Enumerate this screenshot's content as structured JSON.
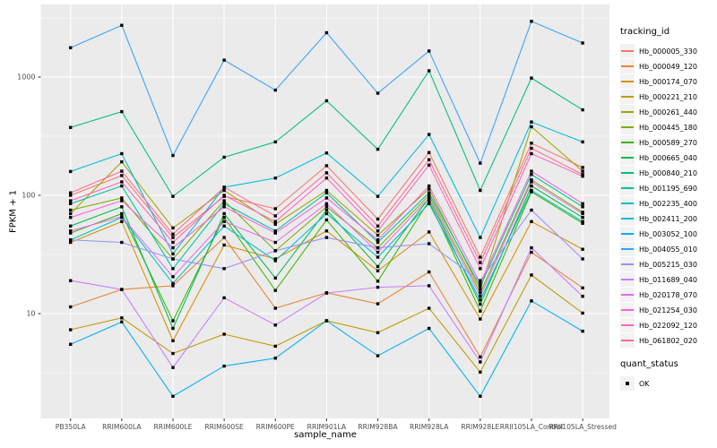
{
  "chart_data": {
    "type": "line",
    "xlabel": "sample_name",
    "ylabel": "FPKM + 1",
    "y_scale": "log10",
    "y_ticks": [
      10,
      100,
      1000
    ],
    "y_minor_ticks": [
      3.162,
      31.62,
      316.2,
      3162
    ],
    "ylim": [
      1.3,
      4100
    ],
    "grid": "major-and-minor-white-on-gray",
    "legend_position": "right",
    "categories": [
      "PB350LA",
      "RRIM600LA",
      "RRIM600LE",
      "RRIM600SE",
      "RRIM600PE",
      "RRIM901LA",
      "RRIM928BA",
      "RRIM928LA",
      "RRIM928LE",
      "RRII105LA_Control",
      "RRII105LA_Stressed"
    ],
    "legend": {
      "title": "tracking_id"
    },
    "legend2": {
      "title": "quant_status",
      "items": [
        {
          "label": "OK",
          "marker": "black-square"
        }
      ]
    },
    "colors": {
      "panel_bg": "#EBEBEB",
      "grid": "#FFFFFF",
      "point": "#000000",
      "tick_mark": "#333333",
      "tick_label": "#4D4D4D",
      "legend_key_bg": "#F2F2F2"
    },
    "series": [
      {
        "name": "Hb_000005_330",
        "color": "#F8766D",
        "values": [
          100,
          147,
          44,
          98,
          77,
          178,
          63,
          230,
          30,
          276,
          172
        ]
      },
      {
        "name": "Hb_000049_120",
        "color": "#EA8331",
        "values": [
          11.4,
          16,
          17.2,
          44,
          11.1,
          15,
          12.1,
          22.5,
          4.3,
          33,
          16.5
        ]
      },
      {
        "name": "Hb_000174_070",
        "color": "#D89000",
        "values": [
          40,
          60,
          5.9,
          38,
          29,
          50,
          23,
          49,
          9,
          60,
          35
        ]
      },
      {
        "name": "Hb_000221_210",
        "color": "#C09B00",
        "values": [
          7.3,
          9.2,
          4.6,
          6.7,
          5.3,
          8.7,
          6.9,
          11.1,
          3.2,
          21.2,
          10.1
        ]
      },
      {
        "name": "Hb_000261_440",
        "color": "#A3A500",
        "values": [
          70,
          192,
          53,
          110,
          57,
          110,
          46,
          113,
          16,
          380,
          160
        ]
      },
      {
        "name": "Hb_000445_180",
        "color": "#7CAE00",
        "values": [
          75,
          95,
          29,
          90,
          34,
          80,
          36,
          100,
          15,
          135,
          72
        ]
      },
      {
        "name": "Hb_000589_270",
        "color": "#39B600",
        "values": [
          48,
          70,
          8.7,
          65,
          15.7,
          62,
          18.8,
          90,
          10.5,
          107,
          58
        ]
      },
      {
        "name": "Hb_000665_040",
        "color": "#00BB4E",
        "values": [
          55,
          80,
          7.5,
          70,
          20,
          75,
          25,
          95,
          12,
          120,
          65
        ]
      },
      {
        "name": "Hb_000840_210",
        "color": "#00BF7D",
        "values": [
          375,
          510,
          98,
          210,
          283,
          630,
          245,
          1130,
          110,
          980,
          528
        ]
      },
      {
        "name": "Hb_001195_690",
        "color": "#00C1A3",
        "values": [
          85,
          120,
          24,
          85,
          50,
          105,
          40,
          105,
          17,
          150,
          80
        ]
      },
      {
        "name": "Hb_002235_400",
        "color": "#00BFC4",
        "values": [
          42,
          65,
          18,
          55,
          28,
          70,
          30,
          85,
          13,
          110,
          60
        ]
      },
      {
        "name": "Hb_002411_200",
        "color": "#00BAE0",
        "values": [
          159,
          225,
          32,
          117,
          140,
          228,
          98,
          327,
          44,
          417,
          283
        ]
      },
      {
        "name": "Hb_003052_100",
        "color": "#00B0F6",
        "values": [
          5.5,
          8.5,
          2.0,
          3.6,
          4.2,
          8.7,
          4.4,
          7.5,
          2.0,
          12.8,
          7.1
        ]
      },
      {
        "name": "Hb_004055_010",
        "color": "#35A2FF",
        "values": [
          1770,
          2740,
          217,
          1390,
          775,
          2370,
          730,
          1660,
          187,
          2960,
          1940
        ]
      },
      {
        "name": "Hb_005215_030",
        "color": "#9590FF",
        "values": [
          42,
          40,
          29,
          24,
          34,
          44,
          36,
          39,
          19,
          75,
          29
        ]
      },
      {
        "name": "Hb_011689_040",
        "color": "#C77CFF",
        "values": [
          19,
          16,
          3.5,
          13.6,
          8,
          14.9,
          16.7,
          17.2,
          3.9,
          36,
          14
        ]
      },
      {
        "name": "Hb_020178_070",
        "color": "#E76BF3",
        "values": [
          50,
          66,
          20.5,
          60,
          40,
          85,
          33,
          95,
          14,
          130,
          70
        ]
      },
      {
        "name": "Hb_021254_030",
        "color": "#FA62DB",
        "values": [
          65,
          90,
          36,
          80,
          48,
          95,
          42,
          120,
          18,
          160,
          85
        ]
      },
      {
        "name": "Hb_022092_120",
        "color": "#FF62BC",
        "values": [
          90,
          130,
          40,
          100,
          60,
          140,
          50,
          180,
          24,
          225,
          145
        ]
      },
      {
        "name": "Hb_061802_020",
        "color": "#FF6A98",
        "values": [
          105,
          160,
          47,
          117,
          67,
          155,
          55,
          200,
          27,
          250,
          150
        ]
      }
    ]
  }
}
